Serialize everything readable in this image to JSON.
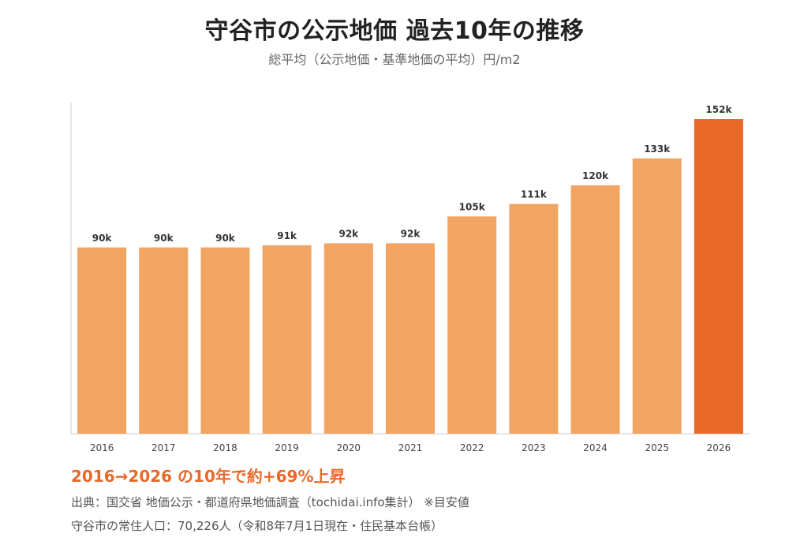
{
  "header": {
    "title": "守谷市の公示地価 過去10年の推移",
    "subtitle": "総平均（公示地価・基準地価の平均）円/m2"
  },
  "colors": {
    "bar": "#f2a463",
    "highlight_bar": "#e8692a",
    "highlight_text": "#e8692a"
  },
  "chart_data": {
    "type": "bar",
    "title": "守谷市の公示地価 過去10年の推移",
    "subtitle": "総平均（公示地価・基準地価の平均）円/m2",
    "categories": [
      "2016",
      "2017",
      "2018",
      "2019",
      "2020",
      "2021",
      "2022",
      "2023",
      "2024",
      "2025",
      "2026"
    ],
    "values": [
      90000,
      90000,
      90000,
      91000,
      92000,
      92000,
      105000,
      111000,
      120000,
      133000,
      152000
    ],
    "labels": [
      "90k",
      "90k",
      "90k",
      "91k",
      "92k",
      "92k",
      "105k",
      "111k",
      "120k",
      "133k",
      "152k"
    ],
    "highlight_category": "2026",
    "ylim": [
      0,
      160000
    ],
    "grid": false,
    "xlabel": "",
    "ylabel": ""
  },
  "footer": {
    "highlight": "2016→2026 の10年で約+69%上昇",
    "source": "出典：国交省 地価公示・都道府県地価調査（tochidai.info集計） ※目安値",
    "population": "守谷市の常住人口：70,226人（令和8年7月1日現在・住民基本台帳）"
  }
}
